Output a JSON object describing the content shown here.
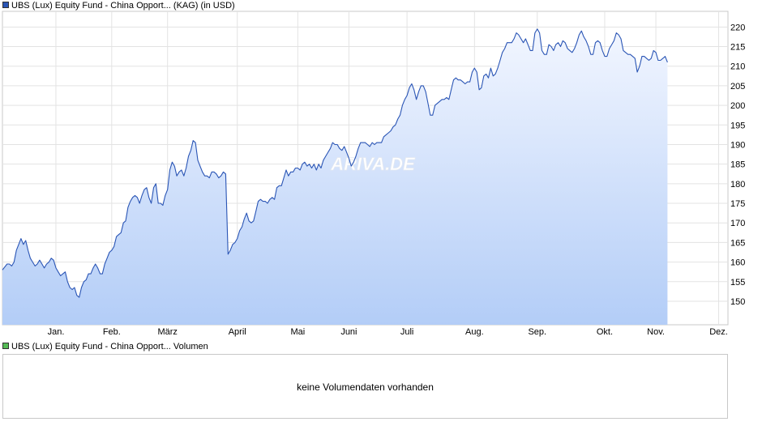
{
  "price_legend": {
    "color": "#2a55b5",
    "label": "UBS (Lux) Equity Fund - China Opport... (KAG) (in USD)"
  },
  "volume_legend": {
    "color": "#55bb55",
    "label": "UBS (Lux) Equity Fund - China Opport... Volumen"
  },
  "volume_panel": {
    "message": "keine Volumendaten vorhanden"
  },
  "watermark": "ARIVA.DE",
  "chart_data": {
    "type": "area",
    "title": "",
    "xlabel": "",
    "ylabel": "",
    "ylim": [
      144,
      224
    ],
    "yticks": [
      150,
      155,
      160,
      165,
      170,
      175,
      180,
      185,
      190,
      195,
      200,
      205,
      210,
      215,
      220
    ],
    "xlim": [
      0,
      312
    ],
    "month_ticks": [
      {
        "label": "Jan.",
        "x": 23
      },
      {
        "label": "Feb.",
        "x": 47
      },
      {
        "label": "März",
        "x": 71
      },
      {
        "label": "April",
        "x": 101
      },
      {
        "label": "Mai",
        "x": 127
      },
      {
        "label": "Juni",
        "x": 149
      },
      {
        "label": "Juli",
        "x": 174
      },
      {
        "label": "Aug.",
        "x": 203
      },
      {
        "label": "Sep.",
        "x": 230
      },
      {
        "label": "Okt.",
        "x": 259
      },
      {
        "label": "Nov.",
        "x": 281
      },
      {
        "label": "Dez.",
        "x": 308
      }
    ],
    "grid": true,
    "line_color": "#2a55b5",
    "fill_top_color": "#f2f6ff",
    "fill_bottom_color": "#b3cdf7",
    "series": [
      {
        "points": [
          [
            0,
            158.0
          ],
          [
            2,
            159.5
          ],
          [
            3,
            159.5
          ],
          [
            4,
            159.0
          ],
          [
            5,
            160.0
          ],
          [
            6,
            163.0
          ],
          [
            8,
            166.0
          ],
          [
            9,
            164.5
          ],
          [
            10,
            165.5
          ],
          [
            11,
            163.0
          ],
          [
            12,
            161.0
          ],
          [
            13,
            160.0
          ],
          [
            14,
            159.0
          ],
          [
            15,
            159.5
          ],
          [
            16,
            160.5
          ],
          [
            17,
            159.5
          ],
          [
            18,
            158.5
          ],
          [
            19,
            159.5
          ],
          [
            20,
            160.0
          ],
          [
            21,
            161.0
          ],
          [
            22,
            160.5
          ],
          [
            23,
            158.5
          ],
          [
            24,
            157.5
          ],
          [
            25,
            156.5
          ],
          [
            26,
            157.0
          ],
          [
            27,
            157.5
          ],
          [
            28,
            155.0
          ],
          [
            29,
            153.5
          ],
          [
            30,
            153.0
          ],
          [
            31,
            153.5
          ],
          [
            32,
            151.5
          ],
          [
            33,
            151.0
          ],
          [
            34,
            153.5
          ],
          [
            35,
            155.0
          ],
          [
            36,
            155.5
          ],
          [
            37,
            157.0
          ],
          [
            38,
            157.0
          ],
          [
            39,
            158.5
          ],
          [
            40,
            159.5
          ],
          [
            41,
            158.5
          ],
          [
            42,
            157.0
          ],
          [
            43,
            157.0
          ],
          [
            44,
            159.5
          ],
          [
            45,
            161.0
          ],
          [
            46,
            162.5
          ],
          [
            47,
            163.0
          ],
          [
            48,
            164.0
          ],
          [
            49,
            166.5
          ],
          [
            50,
            167.0
          ],
          [
            51,
            167.5
          ],
          [
            52,
            170.0
          ],
          [
            53,
            170.5
          ],
          [
            54,
            174.0
          ],
          [
            55,
            175.5
          ],
          [
            56,
            176.5
          ],
          [
            57,
            177.0
          ],
          [
            58,
            176.5
          ],
          [
            59,
            175.0
          ],
          [
            60,
            177.0
          ],
          [
            61,
            178.5
          ],
          [
            62,
            179.0
          ],
          [
            63,
            176.5
          ],
          [
            64,
            175.0
          ],
          [
            65,
            179.0
          ],
          [
            66,
            180.0
          ],
          [
            67,
            175.0
          ],
          [
            68,
            175.0
          ],
          [
            69,
            174.5
          ],
          [
            70,
            177.0
          ],
          [
            71,
            178.5
          ],
          [
            72,
            183.5
          ],
          [
            73,
            185.5
          ],
          [
            74,
            184.5
          ],
          [
            75,
            182.0
          ],
          [
            76,
            183.0
          ],
          [
            77,
            183.5
          ],
          [
            78,
            182.0
          ],
          [
            79,
            184.0
          ],
          [
            80,
            187.0
          ],
          [
            81,
            188.5
          ],
          [
            82,
            191.0
          ],
          [
            83,
            190.5
          ],
          [
            84,
            186.0
          ],
          [
            85,
            184.5
          ],
          [
            86,
            183.0
          ],
          [
            87,
            182.0
          ],
          [
            88,
            182.0
          ],
          [
            89,
            181.5
          ],
          [
            90,
            183.0
          ],
          [
            91,
            183.0
          ],
          [
            92,
            182.5
          ],
          [
            93,
            181.5
          ],
          [
            94,
            182.0
          ],
          [
            95,
            183.0
          ],
          [
            96,
            182.5
          ],
          [
            97,
            162.0
          ],
          [
            98,
            163.0
          ],
          [
            99,
            164.5
          ],
          [
            100,
            165.0
          ],
          [
            101,
            166.0
          ],
          [
            102,
            168.0
          ],
          [
            103,
            169.0
          ],
          [
            104,
            171.0
          ],
          [
            105,
            172.5
          ],
          [
            106,
            170.5
          ],
          [
            107,
            170.0
          ],
          [
            108,
            170.5
          ],
          [
            109,
            173.0
          ],
          [
            110,
            175.5
          ],
          [
            111,
            176.0
          ],
          [
            112,
            175.5
          ],
          [
            113,
            175.5
          ],
          [
            114,
            175.0
          ],
          [
            115,
            176.0
          ],
          [
            116,
            176.5
          ],
          [
            117,
            176.0
          ],
          [
            118,
            179.0
          ],
          [
            119,
            179.5
          ],
          [
            120,
            179.5
          ],
          [
            121,
            181.5
          ],
          [
            122,
            183.5
          ],
          [
            123,
            182.0
          ],
          [
            124,
            183.0
          ],
          [
            125,
            183.0
          ],
          [
            126,
            184.0
          ],
          [
            127,
            184.0
          ],
          [
            128,
            183.5
          ],
          [
            129,
            185.0
          ],
          [
            130,
            185.5
          ],
          [
            131,
            184.5
          ],
          [
            132,
            185.0
          ],
          [
            133,
            184.0
          ],
          [
            134,
            185.0
          ],
          [
            135,
            183.5
          ],
          [
            136,
            185.0
          ],
          [
            137,
            184.0
          ],
          [
            138,
            186.0
          ],
          [
            139,
            187.0
          ],
          [
            140,
            188.0
          ],
          [
            141,
            189.0
          ],
          [
            142,
            190.5
          ],
          [
            143,
            190.0
          ],
          [
            144,
            190.0
          ],
          [
            145,
            189.0
          ],
          [
            146,
            188.5
          ],
          [
            147,
            189.5
          ],
          [
            148,
            188.0
          ],
          [
            149,
            186.5
          ],
          [
            150,
            184.5
          ],
          [
            151,
            185.5
          ],
          [
            152,
            187.0
          ],
          [
            153,
            189.0
          ],
          [
            154,
            190.5
          ],
          [
            155,
            190.5
          ],
          [
            156,
            190.5
          ],
          [
            157,
            190.0
          ],
          [
            158,
            189.5
          ],
          [
            159,
            190.5
          ],
          [
            160,
            190.0
          ],
          [
            161,
            190.5
          ],
          [
            162,
            190.5
          ],
          [
            163,
            190.5
          ],
          [
            164,
            192.0
          ],
          [
            165,
            192.5
          ],
          [
            166,
            193.0
          ],
          [
            167,
            193.5
          ],
          [
            168,
            194.5
          ],
          [
            169,
            195.0
          ],
          [
            170,
            196.5
          ],
          [
            171,
            197.5
          ],
          [
            172,
            200.0
          ],
          [
            173,
            201.5
          ],
          [
            174,
            202.5
          ],
          [
            175,
            204.5
          ],
          [
            176,
            205.5
          ],
          [
            177,
            204.0
          ],
          [
            178,
            201.5
          ],
          [
            179,
            203.5
          ],
          [
            180,
            205.0
          ],
          [
            181,
            205.0
          ],
          [
            182,
            203.5
          ],
          [
            183,
            200.5
          ],
          [
            184,
            197.5
          ],
          [
            185,
            197.5
          ],
          [
            186,
            200.0
          ],
          [
            187,
            200.5
          ],
          [
            188,
            201.0
          ],
          [
            189,
            201.5
          ],
          [
            190,
            201.5
          ],
          [
            191,
            202.0
          ],
          [
            192,
            201.5
          ],
          [
            193,
            204.0
          ],
          [
            194,
            206.5
          ],
          [
            195,
            207.0
          ],
          [
            196,
            206.5
          ],
          [
            197,
            206.5
          ],
          [
            198,
            206.0
          ],
          [
            199,
            205.5
          ],
          [
            200,
            206.0
          ],
          [
            201,
            206.0
          ],
          [
            202,
            208.5
          ],
          [
            203,
            209.5
          ],
          [
            204,
            208.5
          ],
          [
            205,
            204.0
          ],
          [
            206,
            204.5
          ],
          [
            207,
            207.5
          ],
          [
            208,
            208.0
          ],
          [
            209,
            207.0
          ],
          [
            210,
            209.5
          ],
          [
            211,
            207.5
          ],
          [
            212,
            208.0
          ],
          [
            213,
            209.5
          ],
          [
            214,
            211.5
          ],
          [
            215,
            213.5
          ],
          [
            216,
            214.5
          ],
          [
            217,
            216.0
          ],
          [
            218,
            216.0
          ],
          [
            219,
            216.0
          ],
          [
            220,
            217.0
          ],
          [
            221,
            218.5
          ],
          [
            222,
            218.0
          ],
          [
            223,
            217.0
          ],
          [
            224,
            216.0
          ],
          [
            225,
            217.0
          ],
          [
            226,
            215.5
          ],
          [
            227,
            214.0
          ],
          [
            228,
            214.0
          ],
          [
            229,
            218.5
          ],
          [
            230,
            219.5
          ],
          [
            231,
            218.5
          ],
          [
            232,
            214.0
          ],
          [
            233,
            213.0
          ],
          [
            234,
            213.0
          ],
          [
            235,
            215.5
          ],
          [
            236,
            215.0
          ],
          [
            237,
            214.0
          ],
          [
            238,
            215.5
          ],
          [
            239,
            216.0
          ],
          [
            240,
            215.0
          ],
          [
            241,
            216.5
          ],
          [
            242,
            216.0
          ],
          [
            243,
            214.5
          ],
          [
            244,
            214.0
          ],
          [
            245,
            213.5
          ],
          [
            246,
            214.5
          ],
          [
            247,
            216.0
          ],
          [
            248,
            218.0
          ],
          [
            249,
            219.0
          ],
          [
            250,
            217.5
          ],
          [
            251,
            216.5
          ],
          [
            252,
            215.0
          ],
          [
            253,
            213.0
          ],
          [
            254,
            213.0
          ],
          [
            255,
            216.0
          ],
          [
            256,
            216.5
          ],
          [
            257,
            216.0
          ],
          [
            258,
            214.0
          ],
          [
            259,
            212.5
          ],
          [
            260,
            212.5
          ],
          [
            261,
            214.5
          ],
          [
            262,
            215.5
          ],
          [
            263,
            216.5
          ],
          [
            264,
            218.5
          ],
          [
            265,
            218.0
          ],
          [
            266,
            217.0
          ],
          [
            267,
            214.0
          ],
          [
            268,
            213.5
          ],
          [
            269,
            213.0
          ],
          [
            270,
            213.0
          ],
          [
            271,
            212.5
          ],
          [
            272,
            212.0
          ],
          [
            273,
            208.5
          ],
          [
            274,
            210.0
          ],
          [
            275,
            212.5
          ],
          [
            276,
            212.5
          ],
          [
            277,
            212.0
          ],
          [
            278,
            211.5
          ],
          [
            279,
            212.0
          ],
          [
            280,
            214.0
          ],
          [
            281,
            213.5
          ],
          [
            282,
            211.5
          ],
          [
            283,
            211.5
          ],
          [
            284,
            212.0
          ],
          [
            285,
            212.5
          ],
          [
            286,
            211.0
          ]
        ]
      }
    ]
  }
}
